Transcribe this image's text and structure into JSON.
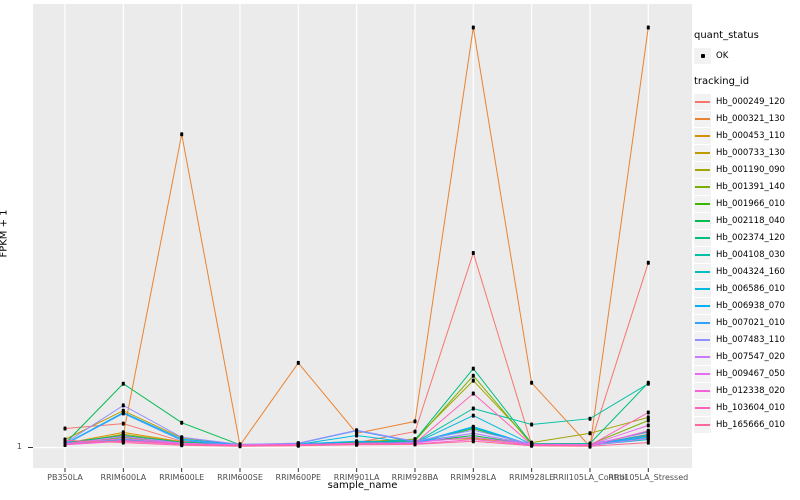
{
  "figure": {
    "background": "#FFFFFF",
    "panel_color": "#EBEBEB",
    "gridline_color": "#FFFFFF",
    "tick_color": "#333333",
    "tick_text_color": "#4D4D4D",
    "point_color": "#000000",
    "y_tick_label": "1"
  },
  "legend": {
    "quant_status_title": "quant_status",
    "quant_status_items": [
      {
        "label": "OK",
        "glyph": "black-point"
      }
    ],
    "tracking_id_title": "tracking_id"
  },
  "chart_data": {
    "type": "line",
    "title": "",
    "xlabel": "sample_name",
    "ylabel": "FPKM + 1",
    "y_axis_ticks": [
      "1"
    ],
    "y_scale_note": "log-style axis of FPKM + 1; only the value 1 is labeled at the baseline. Series values below are percent of panel height above the y=1 baseline (0 = FPKM+1 of 1, 100 = top of panel).",
    "grid": "vertical major gridlines per sample plus horizontal line at y=1",
    "legend_position": "right",
    "marker": "black point on every observation (quant_status OK)",
    "categories": [
      "PB350LA",
      "RRIM600LA",
      "RRIM600LE",
      "RRIM600SE",
      "RRIM600PE",
      "RRIM901LA",
      "RRIM928BA",
      "RRIM928LA",
      "RRIM928LE",
      "RRII105LA_Control",
      "RRII105LA_Stressed"
    ],
    "series": [
      {
        "name": "Hb_000249_120",
        "color": "#F8766D",
        "values": [
          4.3,
          5.4,
          1.4,
          0.5,
          0.7,
          1.1,
          3.6,
          43.9,
          0.7,
          0.5,
          41.7
        ]
      },
      {
        "name": "Hb_000321_130",
        "color": "#EA8331",
        "values": [
          0.7,
          2.9,
          70.7,
          0.5,
          19.1,
          3.2,
          5.9,
          94.8,
          14.6,
          0.2,
          94.8
        ]
      },
      {
        "name": "Hb_000453_110",
        "color": "#D89000",
        "values": [
          0.9,
          3.4,
          1.3,
          0.5,
          0.6,
          1.0,
          1.3,
          2.3,
          0.6,
          0.5,
          3.0
        ]
      },
      {
        "name": "Hb_000733_130",
        "color": "#C09B00",
        "values": [
          1.8,
          8.3,
          2.2,
          0.6,
          0.9,
          1.2,
          1.6,
          2.0,
          0.9,
          0.6,
          2.7
        ]
      },
      {
        "name": "Hb_001190_090",
        "color": "#A3A500",
        "values": [
          0.8,
          3.0,
          1.2,
          0.5,
          0.7,
          1.3,
          1.9,
          15.1,
          1.1,
          3.2,
          6.8
        ]
      },
      {
        "name": "Hb_001391_140",
        "color": "#7CAE00",
        "values": [
          0.6,
          2.3,
          1.0,
          0.4,
          0.5,
          0.9,
          1.5,
          16.2,
          0.7,
          0.7,
          6.1
        ]
      },
      {
        "name": "Hb_001966_010",
        "color": "#39B600",
        "values": [
          1.2,
          1.9,
          0.8,
          0.5,
          0.6,
          0.8,
          1.0,
          4.3,
          0.5,
          0.5,
          2.0
        ]
      },
      {
        "name": "Hb_002118_040",
        "color": "#00BB4E",
        "values": [
          0.9,
          14.4,
          5.6,
          0.6,
          0.6,
          0.8,
          1.2,
          2.7,
          0.6,
          0.5,
          3.6
        ]
      },
      {
        "name": "Hb_002374_120",
        "color": "#00BF7D",
        "values": [
          1.1,
          2.7,
          1.2,
          0.7,
          0.8,
          1.1,
          1.7,
          17.8,
          0.9,
          0.9,
          14.6
        ]
      },
      {
        "name": "Hb_004108_030",
        "color": "#00C1A3",
        "values": [
          0.8,
          2.0,
          0.9,
          0.5,
          0.6,
          0.9,
          1.1,
          8.8,
          5.2,
          6.5,
          14.4
        ]
      },
      {
        "name": "Hb_004324_160",
        "color": "#00BFC4",
        "values": [
          0.7,
          1.6,
          0.7,
          0.4,
          0.5,
          0.8,
          0.9,
          4.5,
          0.5,
          0.5,
          1.8
        ]
      },
      {
        "name": "Hb_006586_010",
        "color": "#00BAE0",
        "values": [
          0.6,
          1.8,
          0.8,
          0.5,
          0.7,
          2.7,
          1.0,
          7.2,
          0.7,
          0.5,
          2.3
        ]
      },
      {
        "name": "Hb_006938_070",
        "color": "#00B0F6",
        "values": [
          0.8,
          7.9,
          1.9,
          0.6,
          0.8,
          1.4,
          1.1,
          4.7,
          0.6,
          0.5,
          2.9
        ]
      },
      {
        "name": "Hb_007021_010",
        "color": "#35A2FF",
        "values": [
          0.7,
          7.7,
          1.6,
          0.5,
          0.9,
          3.8,
          1.2,
          3.2,
          0.7,
          0.6,
          2.5
        ]
      },
      {
        "name": "Hb_007483_110",
        "color": "#9590FF",
        "values": [
          1.0,
          9.5,
          2.3,
          0.7,
          1.0,
          3.9,
          1.4,
          3.9,
          0.8,
          0.7,
          3.4
        ]
      },
      {
        "name": "Hb_007547_020",
        "color": "#C77CFF",
        "values": [
          0.8,
          2.5,
          1.0,
          0.5,
          0.6,
          1.0,
          0.9,
          3.2,
          0.6,
          0.5,
          2.0
        ]
      },
      {
        "name": "Hb_009467_050",
        "color": "#E76BF3",
        "values": [
          0.9,
          2.0,
          0.9,
          0.6,
          0.7,
          0.9,
          1.1,
          2.3,
          0.7,
          0.6,
          5.0
        ]
      },
      {
        "name": "Hb_012338_020",
        "color": "#FA62DB",
        "values": [
          0.6,
          1.4,
          0.7,
          0.4,
          0.5,
          0.7,
          0.8,
          1.8,
          0.5,
          0.4,
          3.8
        ]
      },
      {
        "name": "Hb_103604_010",
        "color": "#FF62BC",
        "values": [
          0.7,
          1.6,
          0.8,
          0.5,
          0.6,
          0.8,
          1.0,
          12.2,
          0.6,
          0.5,
          7.9
        ]
      },
      {
        "name": "Hb_165666_010",
        "color": "#FF6A98",
        "values": [
          1.6,
          1.1,
          0.5,
          0.3,
          0.4,
          0.6,
          0.7,
          1.4,
          0.4,
          0.3,
          1.1
        ]
      }
    ]
  }
}
